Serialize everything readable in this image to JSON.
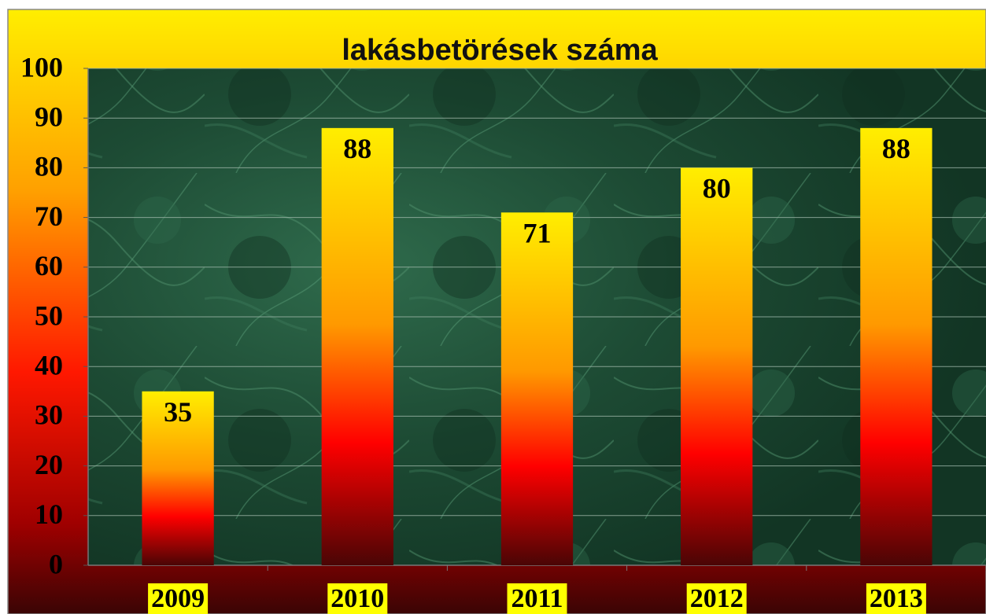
{
  "chart_data": {
    "type": "bar",
    "title": "lakásbetörések száma",
    "categories": [
      "2009",
      "2010",
      "2011",
      "2012",
      "2013"
    ],
    "values": [
      35,
      88,
      71,
      80,
      88
    ],
    "ylim": [
      0,
      100
    ],
    "yticks": [
      0,
      10,
      20,
      30,
      40,
      50,
      60,
      70,
      80,
      90,
      100
    ],
    "grid": true,
    "colors": [
      "#ffee00",
      "#ff9900",
      "#ff0000",
      "#4a0505"
    ]
  }
}
